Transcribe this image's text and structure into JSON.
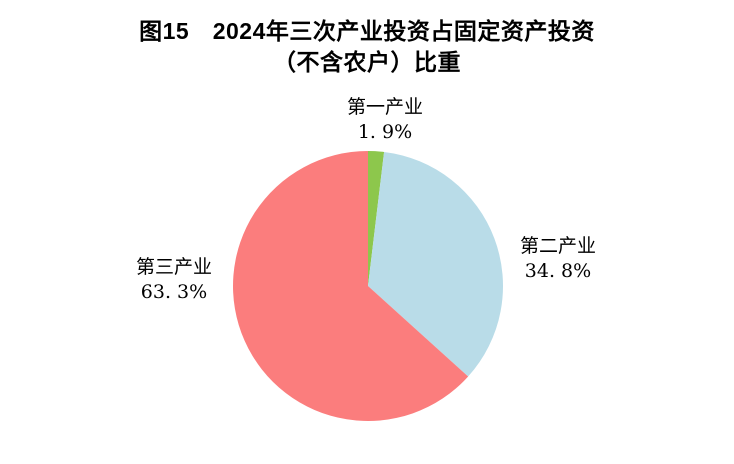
{
  "title": {
    "text": "图15　2024年三次产业投资占固定资产投资\n（不含农户）比重"
  },
  "chart_data": {
    "type": "pie",
    "title": "图15　2024年三次产业投资占固定资产投资（不含农户）比重",
    "categories": [
      "第一产业",
      "第二产业",
      "第三产业"
    ],
    "values": [
      1.9,
      34.8,
      63.3
    ],
    "unit": "%",
    "colors": [
      "#8DC74C",
      "#B9DCE8",
      "#FB7D7D"
    ],
    "start_angle_deg": 0,
    "direction": "clockwise",
    "legend_position": "none",
    "labels_position": "outside",
    "slice_labels": [
      {
        "name": "第一产业",
        "value_label": "1. 9%"
      },
      {
        "name": "第二产业",
        "value_label": "34. 8%"
      },
      {
        "name": "第三产业",
        "value_label": "63. 3%"
      }
    ]
  },
  "colors": {
    "background": "#FFFFFF",
    "title_text": "#000000",
    "label_text": "#000000"
  }
}
